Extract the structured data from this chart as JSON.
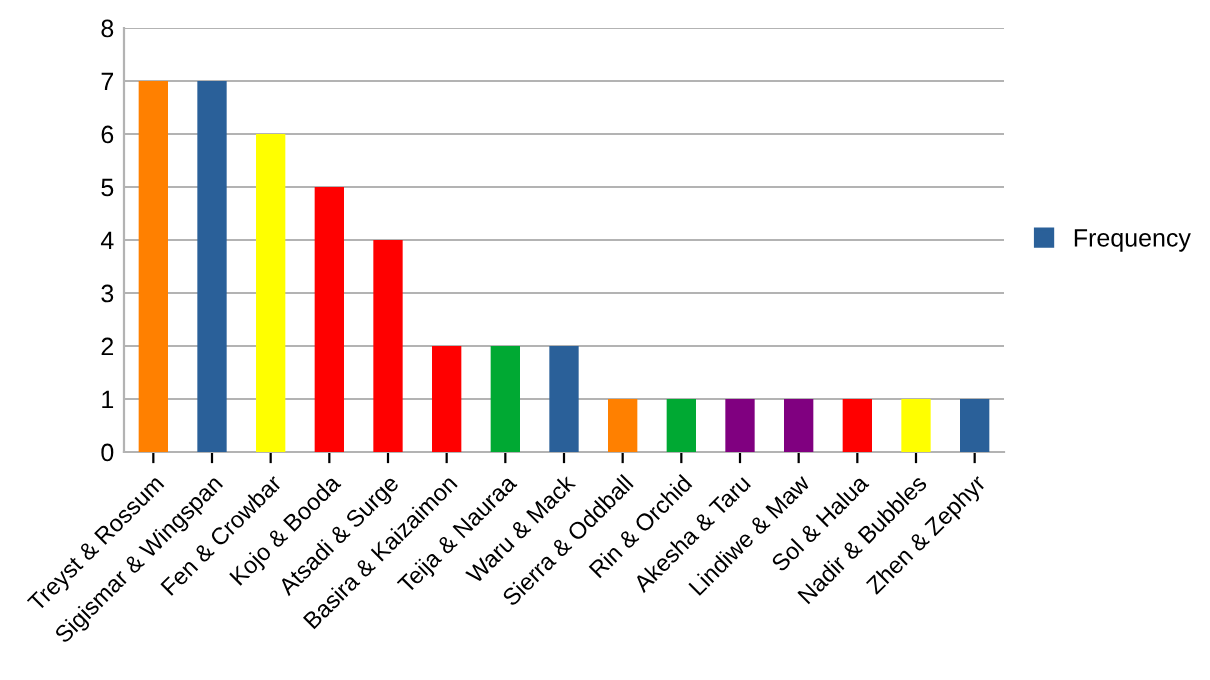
{
  "chart_data": {
    "type": "bar",
    "categories": [
      "Treyst & Rossum",
      "Sigismar & Wingspan",
      "Fen & Crowbar",
      "Kojo & Booda",
      "Atsadi & Surge",
      "Basira & Kaizaimon",
      "Teija & Nauraa",
      "Waru & Mack",
      "Sierra & Oddball",
      "Rin & Orchid",
      "Akesha & Taru",
      "Lindiwe & Maw",
      "Sol & Halua",
      "Nadir & Bubbles",
      "Zhen & Zephyr"
    ],
    "series": [
      {
        "name": "Frequency",
        "color": "#2a6099",
        "values": [
          7,
          7,
          6,
          5,
          4,
          2,
          2,
          2,
          1,
          1,
          1,
          1,
          1,
          1,
          1
        ],
        "colors": [
          "#ff8000",
          "#2a6099",
          "#ffff00",
          "#ff0000",
          "#ff0000",
          "#ff0000",
          "#00a933",
          "#2a6099",
          "#ff8000",
          "#00a933",
          "#800080",
          "#800080",
          "#ff0000",
          "#ffff00",
          "#2a6099"
        ]
      }
    ],
    "ylim": [
      0,
      8
    ],
    "yticks": [
      0,
      1,
      2,
      3,
      4,
      5,
      6,
      7,
      8
    ],
    "grid": "y",
    "legend": "right"
  }
}
